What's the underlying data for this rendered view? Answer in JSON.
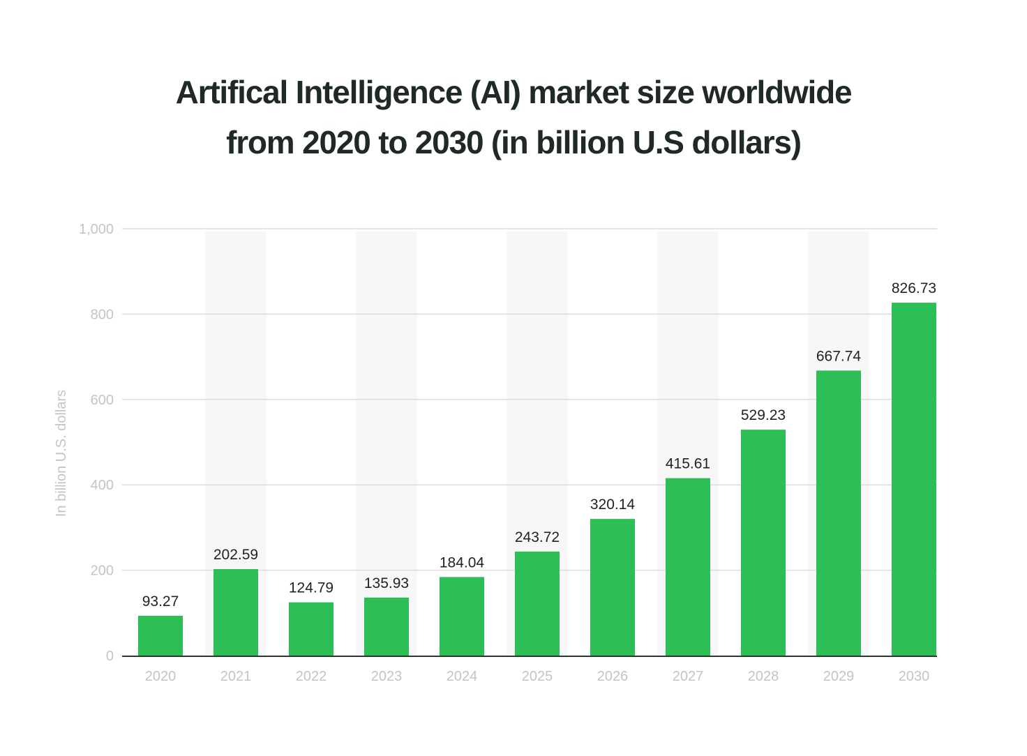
{
  "chart_data": {
    "type": "bar",
    "title": [
      "Artifical Intelligence (AI) market size worldwide",
      "from 2020 to 2030 (in billion U.S dollars)"
    ],
    "ylabel": "In billion U.S. dollars",
    "xlabel": "",
    "ylim": [
      0,
      1000
    ],
    "yticks": [
      0,
      200,
      400,
      600,
      800,
      1000
    ],
    "ytick_labels": [
      "0",
      "200",
      "400",
      "600",
      "800",
      "1,000"
    ],
    "categories": [
      "2020",
      "2021",
      "2022",
      "2023",
      "2024",
      "2025",
      "2026",
      "2027",
      "2028",
      "2029",
      "2030"
    ],
    "values": [
      93.27,
      202.59,
      124.79,
      135.93,
      184.04,
      243.72,
      320.14,
      415.61,
      529.23,
      667.74,
      826.73
    ],
    "value_labels": [
      "93.27",
      "202.59",
      "124.79",
      "135.93",
      "184.04",
      "243.72",
      "320.14",
      "415.61",
      "529.23",
      "667.74",
      "826.73"
    ],
    "grid": true,
    "alternating_column_bands": true,
    "colors": {
      "bar": "#2dbf55",
      "band": "#f7f7f7",
      "grid": "#dcdcdc",
      "axis": "#333333",
      "tick_text": "#c4c4c4",
      "value_text": "#222222",
      "title_text": "#1f2a24"
    }
  }
}
